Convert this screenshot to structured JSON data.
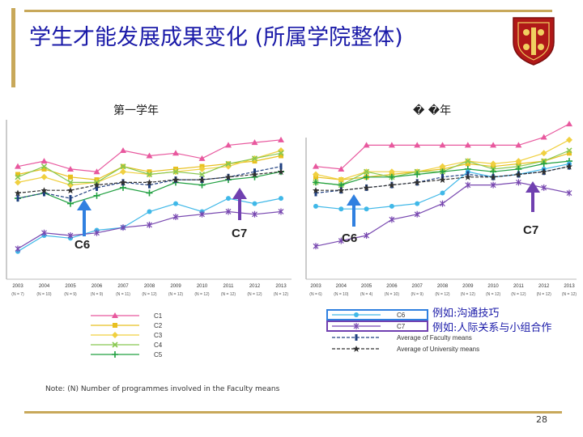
{
  "slide": {
    "title": "学生才能发展成果变化 (所属学院整体)",
    "page_number": "28",
    "note": "Note: (N)   Number of programmes involved in the Faculty means"
  },
  "annotations": {
    "left_c6": "C6",
    "left_c7": "C7",
    "right_c6": "C6",
    "right_c7": "C7"
  },
  "examples": {
    "c6": "例如:沟通技巧",
    "c7": "例如:人际关系与小组合作"
  },
  "legend_left": [
    "C1",
    "C2",
    "C3",
    "C4",
    "C5"
  ],
  "legend_right": [
    "C6",
    "C7",
    "Average of Faculty means",
    "Average of University means"
  ],
  "colors": {
    "C1": "#e8589e",
    "C2": "#e8c020",
    "C3": "#f0d040",
    "C4": "#88c850",
    "C5": "#20a040",
    "C6": "#40b8e8",
    "C7": "#7848b0",
    "faculty": "#204080",
    "university": "#303030",
    "arrow_blue": "#3080e0",
    "arrow_purple": "#7040b0",
    "accent": "#c8a85a",
    "title": "#1a1aa8"
  },
  "chart_data": [
    {
      "type": "line",
      "title": "第一学年",
      "x": [
        "2003",
        "2004",
        "2005",
        "2006",
        "2007",
        "2008",
        "2009",
        "2010",
        "2011",
        "2012",
        "2013"
      ],
      "n_labels": [
        "(N = 7)",
        "(N = 10)",
        "(N = 9)",
        "(N = 9)",
        "(N = 11)",
        "(N = 12)",
        "(N = 12)",
        "(N = 12)",
        "(N = 12)",
        "(N = 12)",
        "(N = 12)"
      ],
      "ylim": [
        0,
        100
      ],
      "series": [
        {
          "name": "C1",
          "values": [
            70,
            72,
            69,
            68,
            76,
            74,
            75,
            73,
            78,
            79,
            80
          ]
        },
        {
          "name": "C2",
          "values": [
            67,
            69,
            66,
            65,
            70,
            68,
            69,
            70,
            71,
            72,
            74
          ]
        },
        {
          "name": "C3",
          "values": [
            64,
            66,
            63,
            64,
            68,
            67,
            68,
            69,
            70,
            73,
            76
          ]
        },
        {
          "name": "C4",
          "values": [
            66,
            70,
            64,
            64,
            70,
            67,
            68,
            67,
            71,
            73,
            75
          ]
        },
        {
          "name": "C5",
          "values": [
            58,
            60,
            56,
            59,
            62,
            60,
            64,
            63,
            65,
            66,
            68
          ]
        },
        {
          "name": "C6",
          "values": [
            38,
            44,
            43,
            46,
            47,
            53,
            56,
            53,
            58,
            56,
            58
          ]
        },
        {
          "name": "C7",
          "values": [
            39,
            45,
            44,
            45,
            47,
            48,
            51,
            52,
            53,
            52,
            53
          ]
        },
        {
          "name": "Average of Faculty means",
          "values": [
            58,
            60,
            58,
            62,
            64,
            63,
            65,
            65,
            66,
            68,
            70
          ]
        },
        {
          "name": "Average of University means",
          "values": [
            60,
            61,
            61,
            63,
            64,
            64,
            65,
            65,
            66,
            67,
            68
          ]
        }
      ]
    },
    {
      "type": "line",
      "title": "� �年",
      "x": [
        "2003",
        "2004",
        "2005",
        "2006",
        "2007",
        "2008",
        "2009",
        "2010",
        "2011",
        "2012",
        "2013"
      ],
      "n_labels": [
        "(N = 6)",
        "(N = 10)",
        "(N = 4)",
        "(N = 10)",
        "(N = 9)",
        "(N = 12)",
        "(N = 12)",
        "(N = 12)",
        "(N = 12)",
        "(N = 12)",
        "(N = 12)"
      ],
      "ylim": [
        0,
        100
      ],
      "series": [
        {
          "name": "C1",
          "values": [
            70,
            69,
            78,
            78,
            78,
            78,
            78,
            78,
            78,
            81,
            86
          ]
        },
        {
          "name": "C2",
          "values": [
            66,
            65,
            66,
            67,
            68,
            69,
            71,
            70,
            71,
            72,
            75
          ]
        },
        {
          "name": "C3",
          "values": [
            67,
            65,
            68,
            68,
            68,
            70,
            72,
            71,
            72,
            75,
            80
          ]
        },
        {
          "name": "C4",
          "values": [
            64,
            63,
            68,
            66,
            68,
            68,
            72,
            69,
            70,
            72,
            76
          ]
        },
        {
          "name": "C5",
          "values": [
            64,
            63,
            66,
            66,
            67,
            68,
            69,
            68,
            69,
            71,
            72
          ]
        },
        {
          "name": "C6",
          "values": [
            55,
            54,
            54,
            55,
            56,
            60,
            68,
            66,
            67,
            69,
            71
          ]
        },
        {
          "name": "C7",
          "values": [
            40,
            42,
            44,
            50,
            52,
            56,
            63,
            63,
            64,
            62,
            60
          ]
        },
        {
          "name": "Average of Faculty means",
          "values": [
            60,
            61,
            62,
            63,
            64,
            66,
            67,
            66,
            67,
            68,
            70
          ]
        },
        {
          "name": "Average of University means",
          "values": [
            61,
            61,
            62,
            63,
            64,
            65,
            66,
            66,
            67,
            68,
            70
          ]
        }
      ]
    }
  ]
}
